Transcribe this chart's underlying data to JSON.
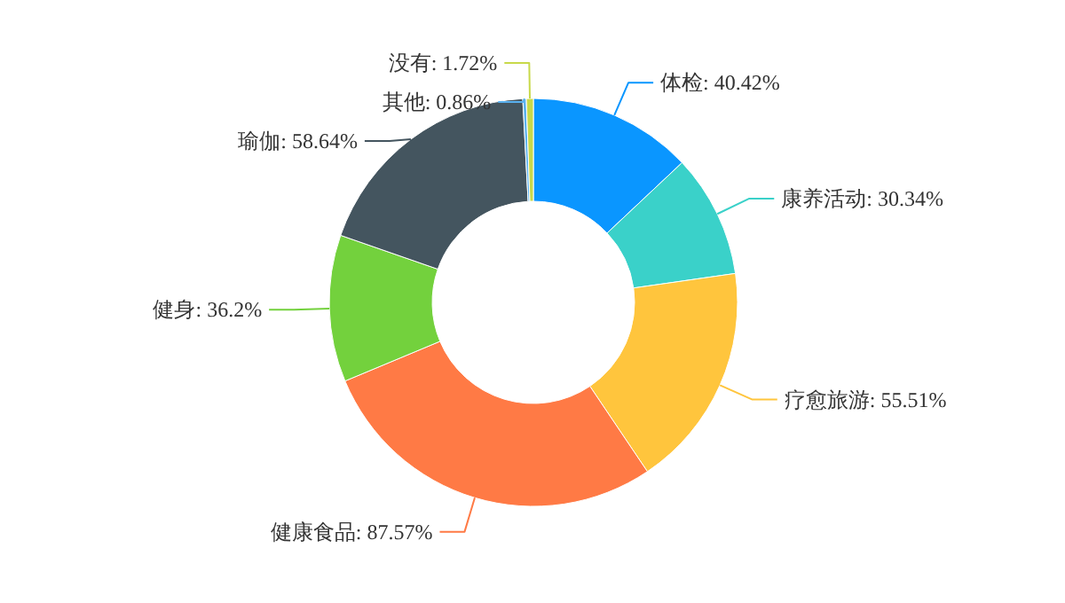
{
  "chart_data": {
    "type": "donut",
    "categories": [
      "体检",
      "康养活动",
      "疗愈旅游",
      "健康食品",
      "健身",
      "瑜伽",
      "其他",
      "没有"
    ],
    "values": [
      40.42,
      30.34,
      55.51,
      87.57,
      36.2,
      58.64,
      0.86,
      1.72
    ],
    "value_labels": [
      "40.42%",
      "30.34%",
      "55.51%",
      "87.57%",
      "36.2%",
      "58.64%",
      "0.86%",
      "1.72%"
    ],
    "colors": [
      "#0a96ff",
      "#3ad1c9",
      "#ffc53d",
      "#ff7a45",
      "#73d13d",
      "#44555f",
      "#5ab1ef",
      "#c8d94a"
    ]
  }
}
